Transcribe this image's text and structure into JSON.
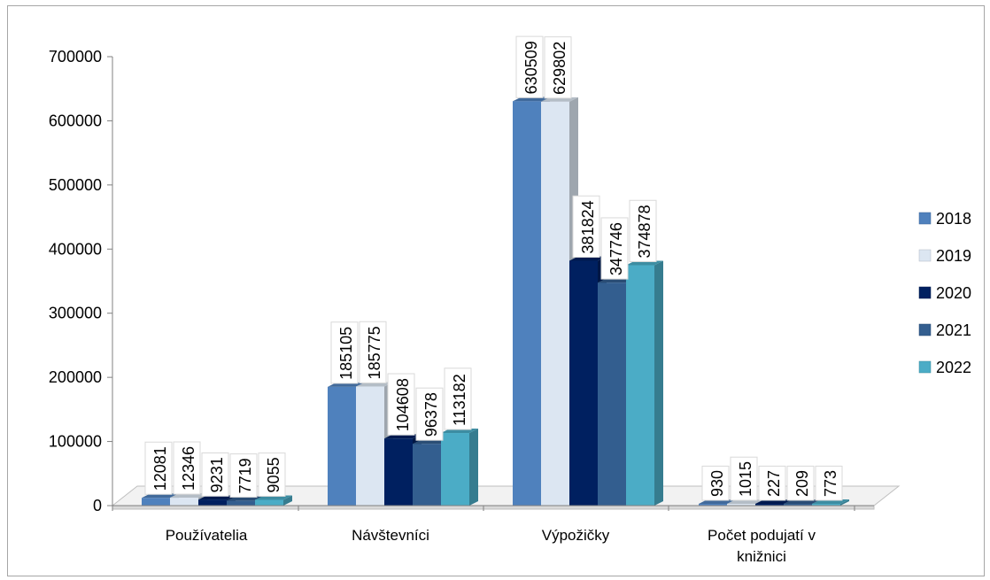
{
  "chart_data": {
    "type": "bar",
    "categories": [
      "Používatelia",
      "Návštevníci",
      "Výpožičky",
      "Počet podujatí v knižnici"
    ],
    "series": [
      {
        "name": "2018",
        "color": "#4f81bd",
        "values": [
          12081,
          185105,
          630509,
          930
        ]
      },
      {
        "name": "2019",
        "color": "#dce6f2",
        "values": [
          12346,
          185775,
          629802,
          1015
        ]
      },
      {
        "name": "2020",
        "color": "#002060",
        "values": [
          9231,
          104608,
          381824,
          227
        ]
      },
      {
        "name": "2021",
        "color": "#335e8f",
        "values": [
          7719,
          96378,
          347746,
          209
        ]
      },
      {
        "name": "2022",
        "color": "#4bacc6",
        "values": [
          9055,
          113182,
          374878,
          773
        ]
      }
    ],
    "y_ticks": [
      "0",
      "100000",
      "200000",
      "300000",
      "400000",
      "500000",
      "600000",
      "700000"
    ],
    "ylim": [
      0,
      700000
    ],
    "legend_position": "right",
    "grid": false,
    "projection": "3d-clustered-column"
  }
}
